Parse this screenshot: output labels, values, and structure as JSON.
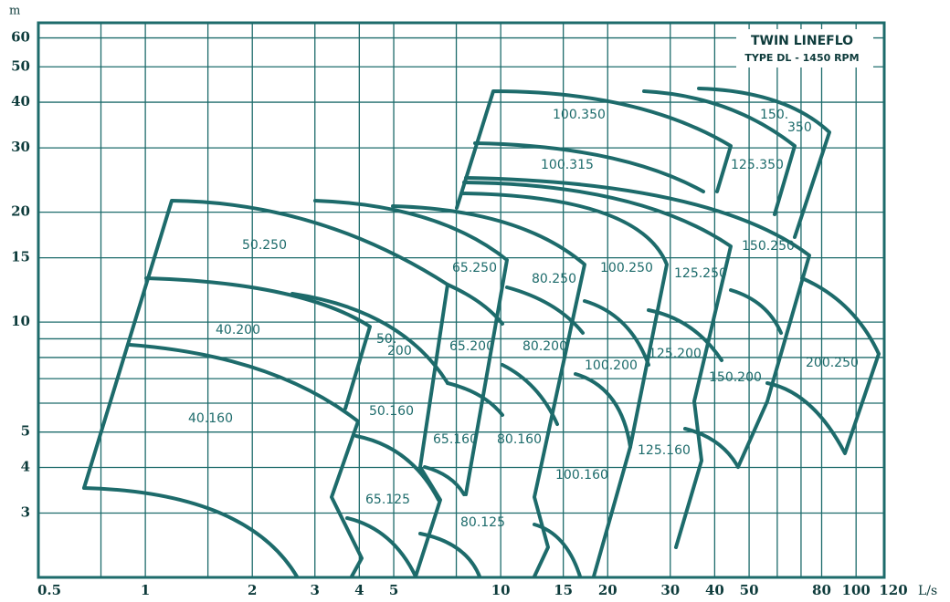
{
  "chart_data": {
    "type": "pump-selection",
    "title": "TWIN LINEFLO",
    "subtitle": "TYPE DL - 1450 RPM",
    "x_label": "L/s",
    "y_label": "m",
    "xscale": "log",
    "yscale": "log",
    "grid": true,
    "color": "#1d6b6b",
    "xlim": [
      0.5,
      120
    ],
    "xticks": [
      0.5,
      1,
      2,
      3,
      4,
      5,
      10,
      15,
      20,
      30,
      40,
      50,
      80,
      100,
      120
    ],
    "minor_xticks": [
      0.75,
      1.5,
      7.5,
      60,
      70
    ],
    "ylim": [
      2,
      66
    ],
    "yticks": [
      3,
      4,
      5,
      10,
      15,
      20,
      30,
      40,
      50,
      60
    ],
    "minor_yticks": [
      6,
      7,
      8,
      9
    ],
    "regions": [
      "100.350",
      "150.",
      "350",
      "100.315",
      "125.350",
      "50.250",
      "20",
      "65.250",
      "80.250",
      "100.250",
      "125.250",
      "150.250",
      "40.200",
      "50.",
      "200",
      "65.200",
      "80.200",
      "125.200",
      "100.200",
      "150.200",
      "200.250",
      "40.160",
      "50.160",
      "65.160",
      "80.160",
      "125.160",
      "100.160",
      "65.125",
      "80.125"
    ]
  }
}
